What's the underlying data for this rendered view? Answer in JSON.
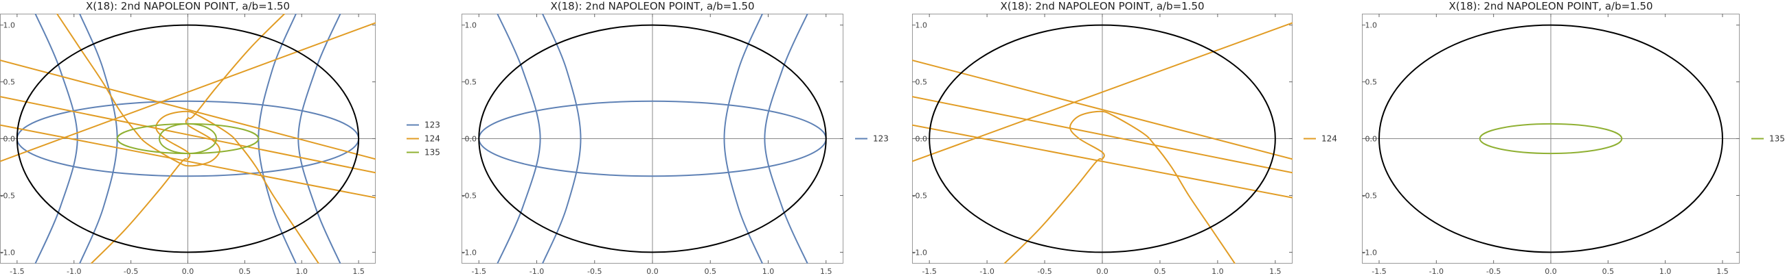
{
  "colors": {
    "123": "#5e81b5",
    "124": "#e19c24",
    "135": "#8fb032",
    "ellipse": "#000000",
    "axis": "#888888"
  },
  "chart_data": [
    {
      "type": "line",
      "title": "X(18): 2nd NAPOLEON POINT, a/b=1.50",
      "xlim": [
        -1.65,
        1.65
      ],
      "ylim": [
        -1.1,
        1.1
      ],
      "xticks": [
        "-1.5",
        "-1.0",
        "-0.5",
        "0.0",
        "0.5",
        "1.0",
        "1.5"
      ],
      "yticks": [
        "-1.0",
        "-0.5",
        "0.0",
        "0.5",
        "1.0"
      ],
      "legend": [
        "123",
        "124",
        "135"
      ],
      "legend_position": "right",
      "series": [
        {
          "name": "123"
        },
        {
          "name": "124"
        },
        {
          "name": "135"
        }
      ]
    },
    {
      "type": "line",
      "title": "X(18): 2nd NAPOLEON POINT, a/b=1.50",
      "xlim": [
        -1.65,
        1.65
      ],
      "ylim": [
        -1.1,
        1.1
      ],
      "xticks": [
        "-1.5",
        "-1.0",
        "-0.5",
        "0.0",
        "0.5",
        "1.0",
        "1.5"
      ],
      "yticks": [
        "-1.0",
        "-0.5",
        "0.0",
        "0.5",
        "1.0"
      ],
      "legend": [
        "123"
      ],
      "legend_position": "right",
      "series": [
        {
          "name": "123"
        }
      ]
    },
    {
      "type": "line",
      "title": "X(18): 2nd NAPOLEON POINT, a/b=1.50",
      "xlim": [
        -1.65,
        1.65
      ],
      "ylim": [
        -1.1,
        1.1
      ],
      "xticks": [
        "-1.5",
        "-1.0",
        "-0.5",
        "0.0",
        "0.5",
        "1.0",
        "1.5"
      ],
      "yticks": [
        "-1.0",
        "-0.5",
        "0.0",
        "0.5",
        "1.0"
      ],
      "legend": [
        "124"
      ],
      "legend_position": "right",
      "series": [
        {
          "name": "124"
        }
      ]
    },
    {
      "type": "line",
      "title": "X(18): 2nd NAPOLEON POINT, a/b=1.50",
      "xlim": [
        -1.65,
        1.65
      ],
      "ylim": [
        -1.1,
        1.1
      ],
      "xticks": [
        "-1.5",
        "-1.0",
        "-0.5",
        "0.0",
        "0.5",
        "1.0",
        "1.5"
      ],
      "yticks": [
        "-1.0",
        "-0.5",
        "0.0",
        "0.5",
        "1.0"
      ],
      "legend": [
        "135"
      ],
      "legend_position": "right",
      "series": [
        {
          "name": "135"
        }
      ]
    }
  ],
  "curves": {
    "ellipse": {
      "a": 1.5,
      "b": 1.0
    },
    "c123_ellipse": {
      "a": 1.5,
      "b": 0.33
    },
    "c123_left": [
      [
        -1.34,
        -1.1
      ],
      [
        -1.12,
        -0.6
      ],
      [
        -0.97,
        0.0
      ],
      [
        -1.12,
        0.6
      ],
      [
        -1.34,
        1.1
      ]
    ],
    "c123_inner_left": [
      [
        -0.95,
        -1.1
      ],
      [
        -0.74,
        -0.6
      ],
      [
        -0.62,
        0.0
      ],
      [
        -0.74,
        0.6
      ],
      [
        -0.95,
        1.1
      ]
    ],
    "c123_inner_right": [
      [
        0.95,
        -1.1
      ],
      [
        0.74,
        -0.6
      ],
      [
        0.62,
        0.0
      ],
      [
        0.74,
        0.6
      ],
      [
        0.95,
        1.1
      ]
    ],
    "c123_right": [
      [
        1.34,
        -1.1
      ],
      [
        1.12,
        -0.6
      ],
      [
        0.97,
        0.0
      ],
      [
        1.12,
        0.6
      ],
      [
        1.34,
        1.1
      ]
    ],
    "c124_lines": [
      [
        [
          -1.65,
          0.12
        ],
        [
          1.65,
          -0.52
        ]
      ],
      [
        [
          -1.65,
          0.37
        ],
        [
          1.65,
          -0.3
        ]
      ],
      [
        [
          -1.65,
          -0.2
        ],
        [
          1.65,
          1.02
        ]
      ],
      [
        [
          -1.65,
          0.69
        ],
        [
          1.65,
          -0.18
        ]
      ]
    ],
    "c124_curve": [
      [
        -0.85,
        -1.1
      ],
      [
        -0.55,
        -0.8
      ],
      [
        -0.25,
        -0.45
      ],
      [
        -0.05,
        -0.2
      ],
      [
        0.0,
        -0.18
      ],
      [
        0.0,
        -0.12
      ],
      [
        -0.2,
        0.0
      ],
      [
        -0.28,
        0.1
      ],
      [
        -0.2,
        0.2
      ],
      [
        -0.02,
        0.24
      ],
      [
        0.1,
        0.2
      ],
      [
        0.35,
        0.05
      ],
      [
        0.45,
        -0.05
      ],
      [
        0.6,
        -0.25
      ],
      [
        0.75,
        -0.5
      ],
      [
        0.95,
        -0.8
      ],
      [
        1.15,
        -1.1
      ]
    ],
    "c124_mirror": [
      [
        0.85,
        1.1
      ],
      [
        0.55,
        0.8
      ],
      [
        0.25,
        0.45
      ],
      [
        0.05,
        0.2
      ],
      [
        0.0,
        0.18
      ],
      [
        0.0,
        0.12
      ],
      [
        0.2,
        0.0
      ],
      [
        0.28,
        -0.1
      ],
      [
        0.2,
        -0.2
      ],
      [
        0.02,
        -0.24
      ],
      [
        -0.1,
        -0.2
      ],
      [
        -0.35,
        -0.05
      ],
      [
        -0.45,
        0.05
      ],
      [
        -0.6,
        0.25
      ],
      [
        -0.75,
        0.5
      ],
      [
        -0.95,
        0.8
      ],
      [
        -1.15,
        1.1
      ]
    ],
    "c135_ellipse": {
      "a": 0.62,
      "b": 0.13
    }
  }
}
